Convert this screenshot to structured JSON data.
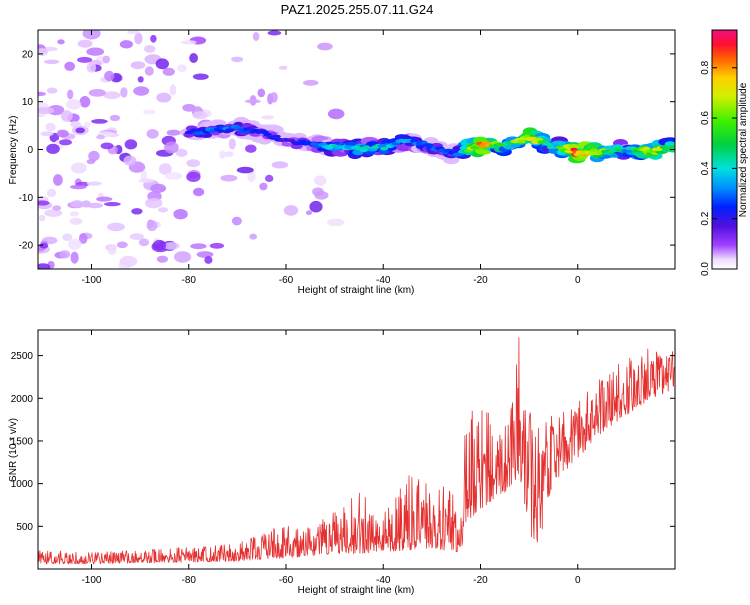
{
  "title": "PAZ1.2025.255.07.11.G24",
  "chart_data": [
    {
      "type": "heatmap",
      "xlabel": "Height of straight line (km)",
      "ylabel": "Frequency (Hz)",
      "xlim": [
        -111,
        20
      ],
      "ylim": [
        -25,
        25
      ],
      "xticks": [
        -100,
        -80,
        -60,
        -40,
        -20,
        0
      ],
      "xtick_labels": [
        "-100",
        "-80",
        "-60",
        "-40",
        "-20",
        "0"
      ],
      "yticks": [
        20,
        10,
        0,
        -10,
        -20
      ],
      "ytick_labels": [
        "20",
        "10",
        "0",
        "-10",
        "-20"
      ],
      "colorbar": {
        "label": "Normalized spectral amplitude",
        "range": [
          0,
          0.95
        ],
        "ticks": [
          0.0,
          0.2,
          0.4,
          0.6,
          0.8
        ],
        "tick_labels": [
          "0.0",
          "0.2",
          "0.4",
          "0.6",
          "0.8"
        ]
      },
      "ridge": {
        "x": [
          -80,
          -75,
          -70,
          -65,
          -60,
          -55,
          -50,
          -45,
          -40,
          -35,
          -30,
          -25,
          -20,
          -15,
          -10,
          -5,
          0,
          5,
          10,
          15,
          20
        ],
        "freq": [
          3.5,
          4.0,
          4.5,
          3.5,
          2.0,
          1.0,
          0.5,
          0.0,
          0.5,
          2.0,
          0.5,
          -1.0,
          1.0,
          1.0,
          2.5,
          0.5,
          -0.5,
          -0.5,
          0.0,
          0.0,
          0.5
        ],
        "amplitude": [
          0.25,
          0.3,
          0.3,
          0.25,
          0.2,
          0.25,
          0.4,
          0.45,
          0.4,
          0.35,
          0.3,
          0.3,
          0.85,
          0.5,
          0.75,
          0.4,
          0.95,
          0.6,
          0.4,
          0.8,
          0.5
        ]
      }
    },
    {
      "type": "line",
      "xlabel": "Height of straight line (km)",
      "ylabel": "SNR (10 * v/v)",
      "xlim": [
        -111,
        20
      ],
      "ylim": [
        0,
        2800
      ],
      "xticks": [
        -100,
        -80,
        -60,
        -40,
        -20,
        0
      ],
      "xtick_labels": [
        "-100",
        "-80",
        "-60",
        "-40",
        "-20",
        "0"
      ],
      "yticks": [
        500,
        1000,
        1500,
        2000,
        2500
      ],
      "ytick_labels": [
        "500",
        "1000",
        "1500",
        "2000",
        "2500"
      ],
      "series": [
        {
          "name": "SNR",
          "color": "#e53030",
          "x": [
            -111,
            -100,
            -90,
            -80,
            -70,
            -65,
            -60,
            -55,
            -50,
            -45,
            -40,
            -35,
            -30,
            -27,
            -24,
            -23,
            -20,
            -15,
            -12,
            -10,
            -8,
            -5,
            0,
            5,
            10,
            15,
            20
          ],
          "envelope_low": [
            60,
            60,
            70,
            80,
            90,
            110,
            130,
            150,
            180,
            180,
            200,
            220,
            240,
            200,
            200,
            550,
            700,
            900,
            1100,
            400,
            300,
            1000,
            1300,
            1600,
            1800,
            2000,
            2100
          ],
          "envelope_high": [
            220,
            200,
            230,
            260,
            320,
            400,
            560,
            480,
            700,
            900,
            700,
            1100,
            1000,
            1000,
            700,
            1900,
            1900,
            1800,
            2800,
            2000,
            1800,
            1900,
            2000,
            2300,
            2450,
            2600,
            2550
          ]
        }
      ]
    }
  ]
}
